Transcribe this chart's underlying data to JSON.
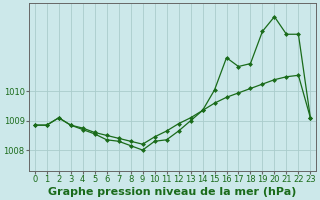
{
  "background_color": "#cce8ea",
  "grid_color": "#aacccc",
  "line_color": "#1a6b1a",
  "title": "Graphe pression niveau de la mer (hPa)",
  "ylim": [
    1007.3,
    1013.0
  ],
  "yticks": [
    1008,
    1009,
    1010
  ],
  "xlim": [
    -0.5,
    23.5
  ],
  "series1_x": [
    0,
    1,
    2,
    3,
    4,
    5,
    6,
    7,
    8,
    9,
    10,
    11,
    12,
    13,
    14,
    15,
    16,
    17,
    18,
    19,
    20,
    21,
    22,
    23
  ],
  "series1_y": [
    1008.85,
    1008.85,
    1009.1,
    1008.85,
    1008.75,
    1008.6,
    1008.5,
    1008.4,
    1008.3,
    1008.2,
    1008.45,
    1008.65,
    1008.9,
    1009.1,
    1009.35,
    1009.6,
    1009.8,
    1009.95,
    1010.1,
    1010.25,
    1010.4,
    1010.5,
    1010.55,
    1009.1
  ],
  "series2_x": [
    0,
    1,
    2,
    3,
    4,
    5,
    6,
    7,
    8,
    9,
    10,
    11,
    12,
    13,
    14,
    15,
    16,
    17,
    18,
    19,
    20,
    21,
    22,
    23
  ],
  "series2_y": [
    1008.85,
    1008.85,
    1009.1,
    1008.85,
    1008.7,
    1008.55,
    1008.35,
    1008.3,
    1008.15,
    1008.0,
    1008.3,
    1008.35,
    1008.65,
    1009.0,
    1009.35,
    1010.05,
    1011.15,
    1010.85,
    1010.95,
    1012.05,
    1012.55,
    1011.95,
    1011.95,
    1009.1
  ],
  "tick_fontsize": 6.0,
  "title_fontsize": 8.0,
  "linewidth": 0.9,
  "markersize": 2.5
}
